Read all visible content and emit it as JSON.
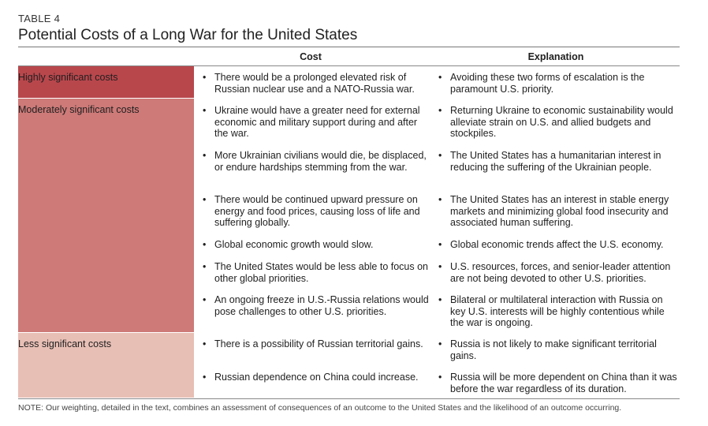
{
  "table_label": "TABLE 4",
  "title": "Potential Costs of a Long War for the United States",
  "headers": {
    "cost": "Cost",
    "explanation": "Explanation"
  },
  "categories": {
    "high": {
      "label": "Highly significant costs",
      "color": "#b8474c"
    },
    "moderate": {
      "label": "Moderately significant costs",
      "color": "#cd7a78"
    },
    "low": {
      "label": "Less significant costs",
      "color": "#e8bfb5"
    }
  },
  "rows": [
    {
      "cost": "There would be a prolonged elevated risk of Russian nuclear use and a NATO-Russia war.",
      "explanation": "Avoiding these two forms of escalation is the paramount U.S. priority."
    },
    {
      "cost": "Ukraine would have a greater need for external economic and military support during and after the war.",
      "explanation": "Returning Ukraine to economic sustainability would alleviate strain on U.S. and allied budgets and stockpiles."
    },
    {
      "cost": "More Ukrainian civilians would die, be displaced, or endure hardships stemming from the war.",
      "explanation": "The United States has a humanitarian interest in reducing the suffering of the Ukrainian people."
    },
    {
      "cost": "There would be continued upward pressure on energy and food prices, causing loss of life and suffering globally.",
      "explanation": "The United States has an interest in stable energy markets and minimizing global food insecurity and associated human suffering."
    },
    {
      "cost": "Global economic growth would slow.",
      "explanation": "Global economic trends affect the U.S. economy."
    },
    {
      "cost": "The United States would be less able to focus on other global priorities.",
      "explanation": "U.S. resources, forces, and senior-leader attention are not being devoted to other U.S. priorities."
    },
    {
      "cost": "An ongoing freeze in U.S.-Russia relations would pose challenges to other U.S. priorities.",
      "explanation": "Bilateral or multilateral interaction with Russia on key U.S. interests will be highly contentious while the war is ongoing."
    },
    {
      "cost": "There is a possibility of Russian territorial gains.",
      "explanation": "Russia is not likely to make significant territorial gains."
    },
    {
      "cost": "Russian dependence on China could increase.",
      "explanation": "Russia will be more dependent on China than it was before the war regardless of its duration."
    }
  ],
  "note": "NOTE: Our weighting, detailed in the text, combines an assessment of consequences of an outcome to the United States and the likelihood of an outcome occurring."
}
